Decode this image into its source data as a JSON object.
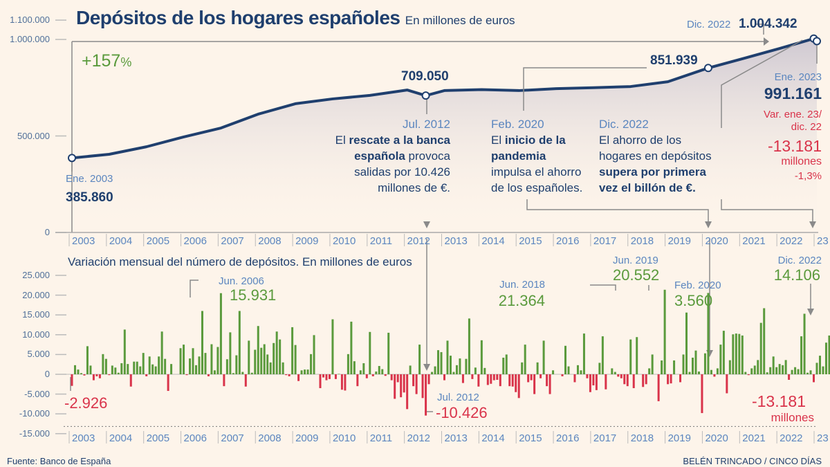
{
  "title": "Depósitos de los hogares españoles",
  "subtitle": "En millones de euros",
  "growth_label": "+157",
  "growth_unit": "%",
  "colors": {
    "line": "#1f3f6e",
    "positive": "#5a9a3c",
    "negative": "#d9334a",
    "label": "#5b86bf",
    "background": "#fdf4ea"
  },
  "chart_data": [
    {
      "type": "line",
      "title": "Depósitos de los hogares españoles",
      "subtitle": "En millones de euros",
      "ylim": [
        0,
        1100000
      ],
      "yticks": [
        "1.100.000",
        "1.000.000",
        "500.000",
        "0"
      ],
      "ytick_values": [
        1100000,
        1000000,
        500000,
        0
      ],
      "xticks": [
        "2003",
        "2004",
        "2005",
        "2006",
        "2007",
        "2008",
        "2009",
        "2010",
        "2011",
        "2012",
        "2013",
        "2014",
        "2015",
        "2016",
        "2017",
        "2018",
        "2019",
        "2020",
        "2021",
        "2022",
        "23"
      ],
      "x": [
        "2003-01",
        "2004-01",
        "2005-01",
        "2006-01",
        "2007-01",
        "2008-01",
        "2009-01",
        "2010-01",
        "2011-01",
        "2012-01",
        "2012-07",
        "2013-01",
        "2014-01",
        "2015-01",
        "2016-01",
        "2017-01",
        "2018-01",
        "2019-01",
        "2020-02",
        "2021-01",
        "2022-01",
        "2022-12",
        "2023-01"
      ],
      "values": [
        385860,
        405000,
        444000,
        495000,
        541000,
        613000,
        667000,
        692000,
        710000,
        738000,
        709050,
        735000,
        740000,
        735000,
        745000,
        750000,
        756000,
        781000,
        851939,
        900000,
        953000,
        1004342,
        991161
      ],
      "area_fill": true,
      "grid": false
    },
    {
      "type": "bar",
      "title": "Variación mensual del número de depósitos. En millones de euros",
      "ylim": [
        -15000,
        25000
      ],
      "yticks": [
        "25.000",
        "20.000",
        "15.000",
        "10.000",
        "5.000",
        "0",
        "-5.000",
        "-10.000",
        "-15.000"
      ],
      "ytick_values": [
        25000,
        20000,
        15000,
        10000,
        5000,
        0,
        -5000,
        -10000,
        -15000
      ],
      "x_start": "2003-01",
      "x_end": "2023-01",
      "xticks": [
        "2003",
        "2004",
        "2005",
        "2006",
        "2007",
        "2008",
        "2009",
        "2010",
        "2011",
        "2012",
        "2013",
        "2014",
        "2015",
        "2016",
        "2017",
        "2018",
        "2019",
        "2020",
        "2021",
        "2022",
        "23"
      ],
      "values": [
        -2926,
        2300,
        1200,
        300,
        -300,
        7100,
        2200,
        -1500,
        -500,
        -1000,
        5100,
        3900,
        -200,
        2200,
        1700,
        400,
        2800,
        11300,
        2600,
        -3100,
        3200,
        3200,
        2000,
        5400,
        -500,
        4500,
        2500,
        2000,
        4500,
        10800,
        3900,
        -4200,
        2600,
        0,
        0,
        6600,
        7500,
        -200,
        4000,
        6600,
        2300,
        4500,
        16000,
        5400,
        -500,
        7600,
        1000,
        6900,
        20500,
        -3000,
        3800,
        10600,
        300,
        4800,
        16000,
        600,
        -3100,
        8500,
        400,
        6200,
        12200,
        6700,
        7600,
        5000,
        3000,
        7900,
        10800,
        8800,
        3000,
        -200,
        -500,
        11900,
        7400,
        -1700,
        1000,
        1200,
        1200,
        5100,
        9900,
        0,
        -3500,
        -800,
        -1500,
        -1200,
        13900,
        -1200,
        100,
        -3900,
        -4100,
        5100,
        13300,
        3300,
        -3000,
        1000,
        2800,
        -1000,
        10700,
        -500,
        700,
        2100,
        1300,
        -400,
        10500,
        -1500,
        -6200,
        -2000,
        -5800,
        -4600,
        -8800,
        2200,
        -3000,
        -5000,
        7500,
        -6000,
        -10426,
        -2500,
        600,
        2000,
        6100,
        5600,
        -1500,
        8500,
        4700,
        600,
        2300,
        4000,
        -2200,
        3900,
        14100,
        -1200,
        1700,
        -3100,
        8600,
        1600,
        -2700,
        -2400,
        -1500,
        -1400,
        -3000,
        4200,
        5000,
        -3000,
        -3100,
        -4500,
        -6000,
        3000,
        7500,
        -2000,
        -1500,
        -5000,
        3000,
        -1000,
        8500,
        -3000,
        -5000,
        1000,
        0,
        0,
        -500,
        7200,
        2000,
        0,
        -2000,
        2300,
        1000,
        10300,
        -1000,
        -4500,
        -2800,
        -4000,
        2900,
        9600,
        -3800,
        0,
        1500,
        600,
        -600,
        -1000,
        -2500,
        -3000,
        8800,
        -3500,
        9400,
        0,
        -3200,
        -2500,
        1500,
        5000,
        0,
        -6800,
        3500,
        21364,
        -2500,
        -2300,
        3500,
        0,
        -2000,
        5000,
        15600,
        600,
        4200,
        6000,
        700,
        -9800,
        5300,
        20552,
        1100,
        -600,
        1500,
        7500,
        11000,
        -4800,
        3560,
        10100,
        10300,
        10200,
        9800,
        600,
        -200,
        1500,
        2200,
        3600,
        13000,
        16700,
        500,
        1800,
        4500,
        1800,
        2600,
        2300,
        3600,
        -1400,
        1100,
        1800,
        1300,
        9600,
        15300,
        400,
        1000,
        -2000,
        2900,
        4700,
        2000,
        8000,
        9800,
        12600,
        -2300,
        14900,
        -1100,
        -5000,
        2600,
        14106,
        -13181
      ],
      "annotations": [
        {
          "label": "Jun. 2006",
          "value": "15.931"
        },
        {
          "label": "Jul. 2012",
          "value": "-10.426"
        },
        {
          "label": "Jun. 2018",
          "value": "21.364"
        },
        {
          "label": "Jun. 2019",
          "value": "20.552"
        },
        {
          "label": "Feb. 2020",
          "value": "3.560"
        },
        {
          "label": "Dic. 2022",
          "value": "14.106"
        },
        {
          "label": "",
          "value": "-2.926"
        },
        {
          "label": "",
          "value": "-13.181",
          "unit": "millones"
        }
      ]
    }
  ],
  "top": {
    "start": {
      "label": "Ene. 2003",
      "value": "385.860"
    },
    "jul2012": {
      "value": "709.050",
      "label": "Jul. 2012",
      "t1": "El ",
      "b1": "rescate a la banca",
      "b2": "española",
      "t2": " provoca",
      "t3": "salidas por 10.426",
      "t4": "millones de €."
    },
    "feb2020": {
      "value": "851.939",
      "label": "Feb. 2020",
      "t1": "El ",
      "b1": "inicio de la",
      "b2": "pandemia",
      "t3": "impulsa el ahorro",
      "t4": "de los españoles."
    },
    "dic2022": {
      "label": "Dic. 2022",
      "t1": "El ahorro de los",
      "t2": "hogares en depósitos",
      "b1": "supera por primera",
      "b2": "vez el billón de €."
    },
    "peak": {
      "label": "Dic. 2022",
      "value": "1.004.342"
    },
    "end": {
      "label": "Ene. 2023",
      "value": "991.161",
      "var1": "Var. ene. 23/",
      "var2": "dic. 22",
      "change": "-13.181",
      "unit": "millones",
      "pct": "-1,3%"
    }
  },
  "bottom_title": "Variación mensual del número de depósitos. En millones de euros",
  "source": "Fuente: Banco de España",
  "credit": "BELÉN TRINCADO / CINCO DÍAS"
}
